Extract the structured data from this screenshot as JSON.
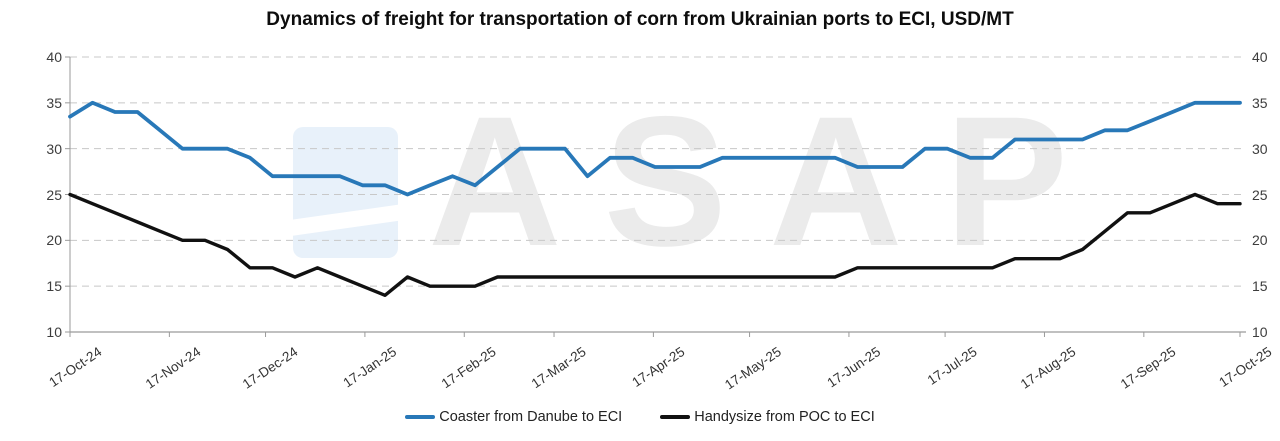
{
  "watermark": {
    "text": "ASAP"
  },
  "chart_data": {
    "type": "line",
    "title": "Dynamics of freight for transportation of corn from Ukrainian ports to ECI, USD/MT",
    "xlabel": "",
    "ylabel": "",
    "ylim": [
      10,
      40
    ],
    "y_ticks": [
      10,
      15,
      20,
      25,
      30,
      35,
      40
    ],
    "y_axis_sides": "left and right",
    "grid": "horizontal dashed",
    "legend_position": "bottom center",
    "x_tick_labels": [
      "17-Oct-24",
      "17-Nov-24",
      "17-Dec-24",
      "17-Jan-25",
      "17-Feb-25",
      "17-Mar-25",
      "17-Apr-25",
      "17-May-25",
      "17-Jun-25",
      "17-Jul-25",
      "17-Aug-25",
      "17-Sep-25",
      "17-Oct-25"
    ],
    "x_tick_day_offsets": [
      0,
      31,
      61,
      92,
      123,
      151,
      182,
      212,
      243,
      273,
      304,
      335,
      365
    ],
    "days_total": 365,
    "cadence": "weekly",
    "series": [
      {
        "name": "Coaster from Danube to ECI",
        "color": "#2878B8",
        "values": [
          33.5,
          35,
          34,
          34,
          32,
          30,
          30,
          30,
          29,
          27,
          27,
          27,
          27,
          26,
          26,
          25,
          26,
          27,
          26,
          28,
          30,
          30,
          30,
          27,
          29,
          29,
          28,
          28,
          28,
          29,
          29,
          29,
          29,
          29,
          29,
          28,
          28,
          28,
          30,
          30,
          29,
          29,
          31,
          31,
          31,
          31,
          32,
          32,
          33,
          34,
          35,
          35,
          35
        ]
      },
      {
        "name": "Handysize from POC to ECI",
        "color": "#111111",
        "values": [
          25,
          24,
          23,
          22,
          21,
          20,
          20,
          19,
          17,
          17,
          16,
          17,
          16,
          15,
          14,
          16,
          15,
          15,
          15,
          16,
          16,
          16,
          16,
          16,
          16,
          16,
          16,
          16,
          16,
          16,
          16,
          16,
          16,
          16,
          16,
          17,
          17,
          17,
          17,
          17,
          17,
          17,
          18,
          18,
          18,
          19,
          21,
          23,
          23,
          24,
          25,
          24,
          24
        ]
      }
    ]
  }
}
